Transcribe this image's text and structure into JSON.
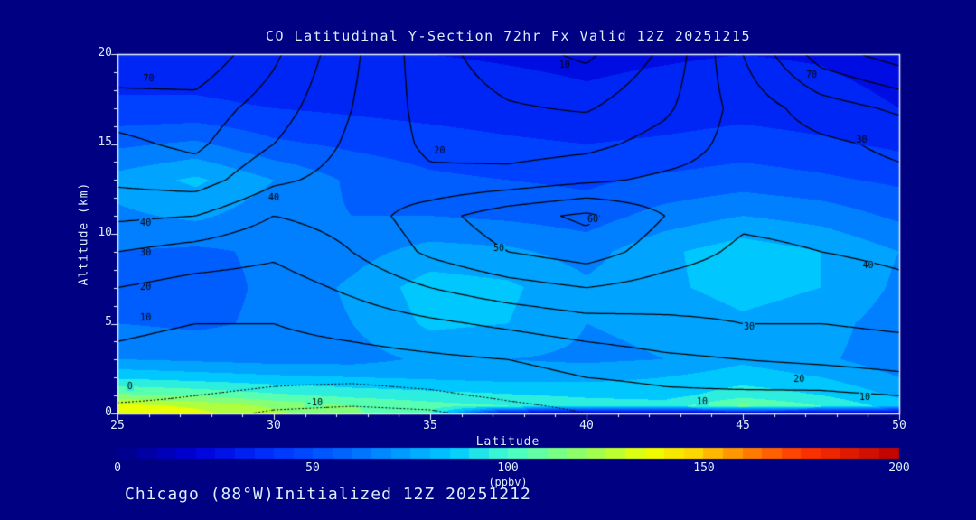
{
  "window": {
    "background": "#000082",
    "text_color": "#d6effc"
  },
  "footer": {
    "annotation": "Chicago (88°W)Initialized 12Z 20251212"
  },
  "chart_data": {
    "type": "heatmap",
    "title": "CO Latitudinal Y-Section 72hr  Fx Valid 12Z 20251215",
    "xlabel": "Latitude",
    "ylabel": "Altitude (km)",
    "xlim": [
      25,
      50
    ],
    "ylim": [
      0,
      20
    ],
    "xticks": [
      "25",
      "30",
      "35",
      "40",
      "45",
      "50"
    ],
    "yticks": [
      "0",
      "5",
      "10",
      "15",
      "20"
    ],
    "grid": false,
    "contour_color": "#000000",
    "colorbar": {
      "min": 0,
      "max": 200,
      "ticks": [
        "0",
        "50",
        "100",
        "150",
        "200"
      ],
      "units": "(ppbv)",
      "stops": [
        [
          0.0,
          "#000085"
        ],
        [
          0.1,
          "#0000D8"
        ],
        [
          0.2,
          "#0033FF"
        ],
        [
          0.29,
          "#0066FF"
        ],
        [
          0.36,
          "#0099FF"
        ],
        [
          0.43,
          "#00CCFF"
        ],
        [
          0.5,
          "#44FFCC"
        ],
        [
          0.56,
          "#77FF88"
        ],
        [
          0.62,
          "#AAFF44"
        ],
        [
          0.68,
          "#EEFF00"
        ],
        [
          0.74,
          "#FFD500"
        ],
        [
          0.8,
          "#FF8800"
        ],
        [
          0.88,
          "#FF3300"
        ],
        [
          1.0,
          "#BB0000"
        ]
      ]
    },
    "fill_band_step": 10,
    "lat_axis": [
      25,
      27.5,
      30,
      32.5,
      35,
      37.5,
      40,
      42.5,
      45,
      47.5,
      50
    ],
    "alt_axis": [
      0,
      0.4,
      1,
      2,
      3,
      5,
      7,
      9,
      11,
      13,
      15,
      17,
      20
    ],
    "fill_ppbv": [
      [
        140,
        133,
        122,
        112,
        100,
        22,
        15,
        14,
        18,
        15,
        12
      ],
      [
        134,
        128,
        118,
        110,
        104,
        100,
        96,
        95,
        112,
        100,
        85
      ],
      [
        112,
        108,
        102,
        97,
        94,
        91,
        88,
        86,
        96,
        90,
        78
      ],
      [
        88,
        85,
        82,
        80,
        78,
        76,
        77,
        80,
        85,
        80,
        70
      ],
      [
        70,
        68,
        66,
        66,
        72,
        70,
        68,
        70,
        78,
        72,
        64
      ],
      [
        60,
        58,
        62,
        70,
        82,
        80,
        70,
        72,
        78,
        74,
        65
      ],
      [
        58,
        56,
        62,
        72,
        85,
        82,
        72,
        78,
        84,
        80,
        68
      ],
      [
        60,
        58,
        62,
        66,
        74,
        72,
        66,
        78,
        86,
        80,
        70
      ],
      [
        68,
        72,
        64,
        60,
        60,
        58,
        55,
        64,
        70,
        66,
        58
      ],
      [
        74,
        82,
        70,
        58,
        52,
        50,
        48,
        52,
        55,
        52,
        48
      ],
      [
        58,
        62,
        52,
        48,
        45,
        42,
        40,
        42,
        45,
        42,
        38
      ],
      [
        42,
        42,
        40,
        38,
        36,
        34,
        32,
        34,
        36,
        34,
        30
      ],
      [
        34,
        34,
        32,
        31,
        30,
        29,
        28,
        29,
        30,
        29,
        26
      ]
    ],
    "line_contours": {
      "levels": [
        -10,
        0,
        10,
        20,
        30,
        40,
        50,
        60,
        70,
        80
      ],
      "dotted_below": 10,
      "grid": [
        [
          -3,
          -5,
          -12,
          -14,
          -12,
          -5,
          0,
          2,
          0,
          2,
          5
        ],
        [
          -1,
          -2,
          -8,
          -10,
          -8,
          -2,
          2,
          5,
          4,
          5,
          8
        ],
        [
          2,
          0,
          -2,
          -4,
          -2,
          2,
          5,
          8,
          8,
          8,
          10
        ],
        [
          5,
          4,
          2,
          2,
          4,
          6,
          10,
          12,
          14,
          15,
          18
        ],
        [
          8,
          6,
          5,
          6,
          8,
          10,
          14,
          18,
          20,
          22,
          24
        ],
        [
          12,
          10,
          10,
          14,
          18,
          22,
          26,
          28,
          30,
          30,
          32
        ],
        [
          20,
          16,
          15,
          22,
          30,
          36,
          40,
          36,
          34,
          35,
          38
        ],
        [
          30,
          26,
          22,
          30,
          42,
          50,
          55,
          45,
          38,
          40,
          42
        ],
        [
          42,
          40,
          30,
          34,
          46,
          56,
          62,
          50,
          42,
          43,
          45
        ],
        [
          52,
          55,
          42,
          36,
          32,
          34,
          38,
          42,
          44,
          46,
          48
        ],
        [
          58,
          62,
          50,
          38,
          28,
          25,
          27,
          34,
          44,
          48,
          52
        ],
        [
          64,
          66,
          55,
          40,
          26,
          21,
          19,
          28,
          44,
          55,
          62
        ],
        [
          80,
          78,
          62,
          42,
          24,
          14,
          8,
          22,
          50,
          75,
          85
        ]
      ]
    },
    "contour_labels": [
      [
        26.0,
        18.6,
        "70"
      ],
      [
        47.2,
        18.8,
        "70"
      ],
      [
        39.3,
        19.4,
        "10"
      ],
      [
        35.3,
        14.6,
        "20"
      ],
      [
        48.8,
        15.2,
        "30"
      ],
      [
        25.9,
        10.6,
        "40"
      ],
      [
        25.9,
        8.9,
        "30"
      ],
      [
        25.9,
        7.0,
        "20"
      ],
      [
        25.9,
        5.3,
        "10"
      ],
      [
        25.4,
        1.5,
        "0"
      ],
      [
        31.3,
        0.6,
        "-10"
      ],
      [
        37.2,
        9.2,
        "50"
      ],
      [
        40.2,
        10.8,
        "60"
      ],
      [
        45.2,
        4.8,
        "30"
      ],
      [
        46.8,
        1.9,
        "20"
      ],
      [
        48.9,
        0.9,
        "10"
      ],
      [
        43.7,
        0.65,
        "10"
      ],
      [
        49.0,
        8.2,
        "40"
      ],
      [
        30.0,
        12.0,
        "40"
      ]
    ]
  }
}
